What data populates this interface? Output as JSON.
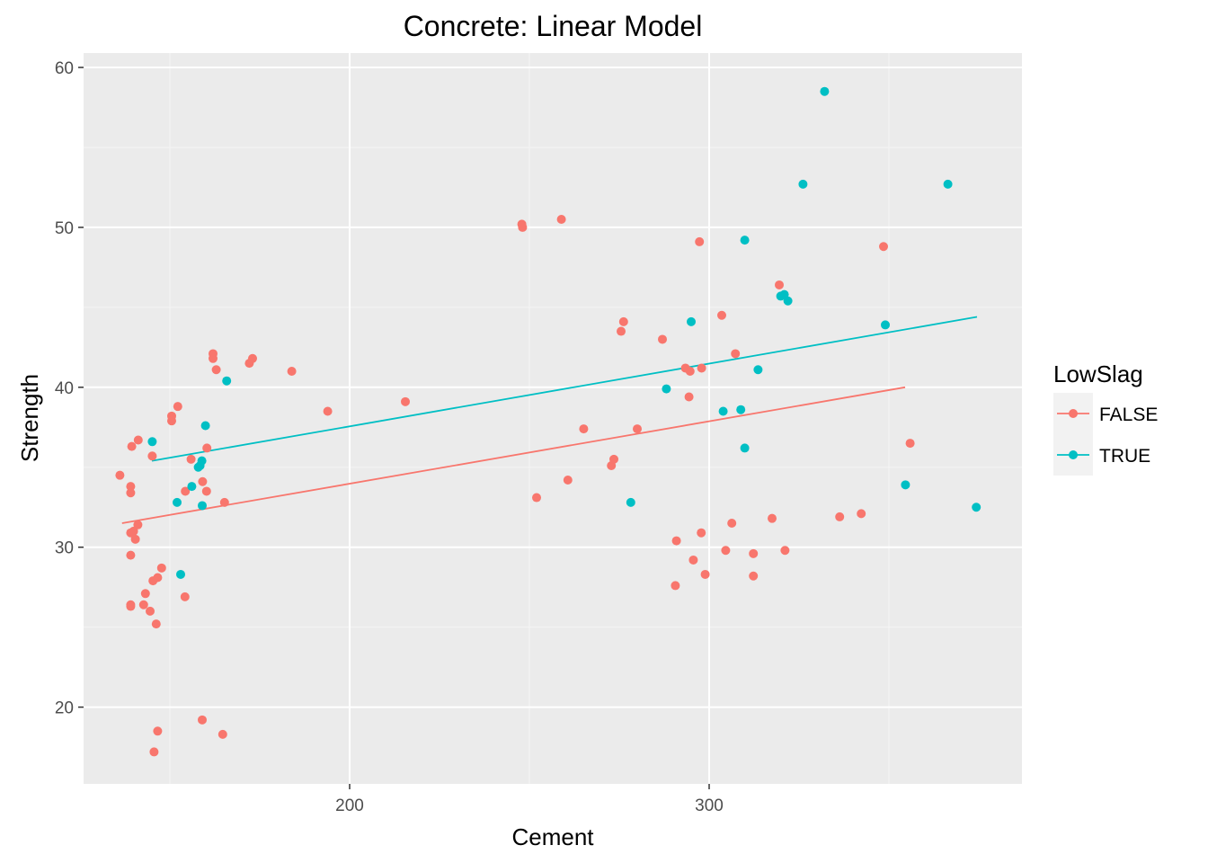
{
  "chart_data": {
    "type": "scatter",
    "title": "Concrete: Linear Model",
    "xlabel": "Cement",
    "ylabel": "Strength",
    "xlim": [
      126,
      387
    ],
    "ylim": [
      15.2,
      60.9
    ],
    "x_ticks": [
      200,
      300
    ],
    "y_ticks": [
      20,
      30,
      40,
      50,
      60
    ],
    "grid": true,
    "background": "#ebebeb",
    "legend": {
      "title": "LowSlag",
      "position": "right",
      "entries": [
        {
          "label": "FALSE",
          "color": "#f8766d"
        },
        {
          "label": "TRUE",
          "color": "#00bfc4"
        }
      ]
    },
    "series": [
      {
        "name": "FALSE",
        "color": "#f8766d",
        "fit": {
          "x": [
            136.7,
            354.5
          ],
          "y": [
            31.5,
            40.0
          ]
        },
        "points": [
          [
            136.1,
            34.5
          ],
          [
            139.1,
            33.8
          ],
          [
            139.1,
            33.4
          ],
          [
            139.4,
            36.3
          ],
          [
            139.1,
            30.9
          ],
          [
            139.9,
            31.0
          ],
          [
            140.4,
            30.5
          ],
          [
            141.2,
            36.7
          ],
          [
            141.1,
            31.4
          ],
          [
            139.1,
            29.5
          ],
          [
            139.1,
            26.4
          ],
          [
            139.1,
            26.3
          ],
          [
            142.7,
            26.4
          ],
          [
            143.2,
            27.1
          ],
          [
            144.5,
            26.0
          ],
          [
            145.1,
            35.7
          ],
          [
            145.3,
            27.9
          ],
          [
            146.6,
            28.1
          ],
          [
            147.7,
            28.7
          ],
          [
            146.6,
            18.5
          ],
          [
            145.6,
            17.2
          ],
          [
            146.2,
            25.2
          ],
          [
            150.5,
            37.9
          ],
          [
            150.5,
            38.2
          ],
          [
            152.2,
            38.8
          ],
          [
            154.3,
            33.5
          ],
          [
            155.9,
            35.5
          ],
          [
            154.2,
            26.9
          ],
          [
            159.1,
            34.1
          ],
          [
            160.2,
            33.5
          ],
          [
            160.3,
            36.2
          ],
          [
            162.0,
            42.1
          ],
          [
            162.0,
            41.8
          ],
          [
            162.9,
            41.1
          ],
          [
            165.2,
            32.8
          ],
          [
            164.7,
            18.3
          ],
          [
            159.0,
            19.2
          ],
          [
            172.1,
            41.5
          ],
          [
            173.0,
            41.8
          ],
          [
            183.9,
            41.0
          ],
          [
            193.9,
            38.5
          ],
          [
            215.5,
            39.1
          ],
          [
            247.9,
            50.2
          ],
          [
            248.1,
            50.0
          ],
          [
            258.9,
            50.5
          ],
          [
            252.0,
            33.1
          ],
          [
            260.7,
            34.2
          ],
          [
            265.1,
            37.4
          ],
          [
            272.8,
            35.1
          ],
          [
            273.5,
            35.5
          ],
          [
            275.5,
            43.5
          ],
          [
            276.2,
            44.1
          ],
          [
            280.0,
            37.4
          ],
          [
            287.0,
            43.0
          ],
          [
            290.6,
            27.6
          ],
          [
            290.9,
            30.4
          ],
          [
            293.4,
            41.2
          ],
          [
            294.4,
            39.4
          ],
          [
            294.7,
            41.0
          ],
          [
            295.6,
            29.2
          ],
          [
            297.3,
            49.1
          ],
          [
            297.8,
            30.9
          ],
          [
            297.9,
            41.2
          ],
          [
            298.9,
            28.3
          ],
          [
            303.5,
            44.5
          ],
          [
            304.6,
            29.8
          ],
          [
            306.3,
            31.5
          ],
          [
            307.3,
            42.1
          ],
          [
            312.3,
            29.6
          ],
          [
            312.3,
            28.2
          ],
          [
            317.5,
            31.8
          ],
          [
            319.5,
            46.4
          ],
          [
            321.1,
            29.8
          ],
          [
            336.3,
            31.9
          ],
          [
            342.3,
            32.1
          ],
          [
            348.5,
            48.8
          ],
          [
            355.9,
            36.5
          ]
        ]
      },
      {
        "name": "TRUE",
        "color": "#00bfc4",
        "fit": {
          "x": [
            145.0,
            374.5
          ],
          "y": [
            35.4,
            44.4
          ]
        },
        "points": [
          [
            145.1,
            36.6
          ],
          [
            152.0,
            32.8
          ],
          [
            153.0,
            28.3
          ],
          [
            156.1,
            33.8
          ],
          [
            157.9,
            35.0
          ],
          [
            158.4,
            35.1
          ],
          [
            158.9,
            35.4
          ],
          [
            159.0,
            32.6
          ],
          [
            159.9,
            37.6
          ],
          [
            165.8,
            40.4
          ],
          [
            278.2,
            32.8
          ],
          [
            288.1,
            39.9
          ],
          [
            295.0,
            44.1
          ],
          [
            303.9,
            38.5
          ],
          [
            308.8,
            38.6
          ],
          [
            309.9,
            49.2
          ],
          [
            309.9,
            36.2
          ],
          [
            313.6,
            41.1
          ],
          [
            319.9,
            45.7
          ],
          [
            320.9,
            45.8
          ],
          [
            321.9,
            45.4
          ],
          [
            326.1,
            52.7
          ],
          [
            332.1,
            58.5
          ],
          [
            349.0,
            43.9
          ],
          [
            354.6,
            33.9
          ],
          [
            366.4,
            52.7
          ],
          [
            374.3,
            32.5
          ]
        ]
      }
    ]
  }
}
